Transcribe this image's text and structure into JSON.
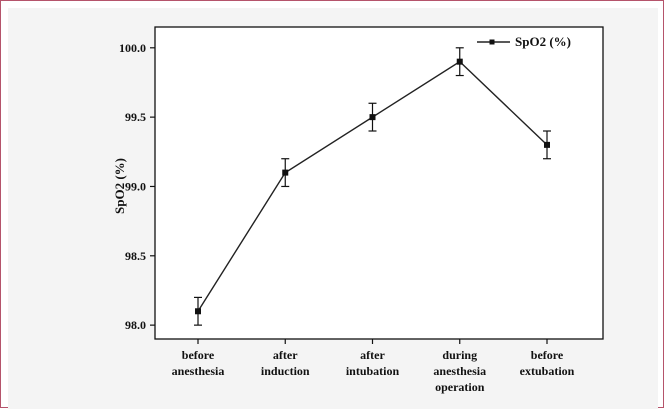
{
  "chart_data": {
    "type": "line",
    "categories": [
      [
        "before",
        "anesthesia"
      ],
      [
        "after",
        "induction"
      ],
      [
        "after",
        "intubation"
      ],
      [
        "during",
        "anesthesia",
        "operation"
      ],
      [
        "before",
        "extubation"
      ]
    ],
    "series": [
      {
        "name": "SpO2 (%)",
        "values": [
          98.1,
          99.1,
          99.5,
          99.9,
          99.3
        ],
        "errors": [
          0.1,
          0.1,
          0.1,
          0.1,
          0.1
        ]
      }
    ],
    "ylabel": "SpO2 (%)",
    "xlabel": "",
    "ylim": [
      97.9,
      100.15
    ],
    "yticks": [
      "98.0",
      "98.5",
      "99.0",
      "99.5",
      "100.0"
    ],
    "legend_position": "top-right",
    "grid": false,
    "colors": {
      "line": "#222222",
      "marker": "#111111"
    }
  }
}
